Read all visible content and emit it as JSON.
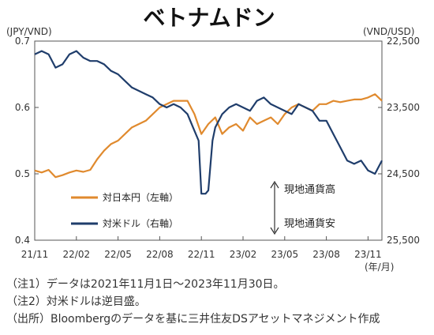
{
  "chart_data": {
    "type": "line",
    "title": "ベトナムドン",
    "left_axis_unit": "(JPY/VND)",
    "right_axis_unit": "(VND/USD)",
    "x_unit": "(年/月)",
    "x_ticks": [
      "21/11",
      "22/02",
      "22/05",
      "22/08",
      "22/11",
      "23/02",
      "23/05",
      "23/08",
      "23/11"
    ],
    "x_range": [
      0,
      25
    ],
    "y_left": {
      "ticks": [
        "0.4",
        "0.5",
        "0.6",
        "0.7"
      ],
      "range": [
        0.4,
        0.7
      ]
    },
    "y_right": {
      "ticks": [
        "22,500",
        "23,500",
        "24,500",
        "25,500"
      ],
      "range": [
        22500,
        25500
      ],
      "inverted": true
    },
    "grid": false,
    "legend_position": "lower-left",
    "series": [
      {
        "name": "対日本円（左軸）",
        "axis": "left",
        "color": "#e08a2e",
        "x": [
          0,
          0.5,
          1,
          1.5,
          2,
          2.5,
          3,
          3.5,
          4,
          4.5,
          5,
          5.5,
          6,
          6.5,
          7,
          7.5,
          8,
          8.5,
          9,
          9.5,
          10,
          10.5,
          11,
          11.5,
          12,
          12.5,
          13,
          13.5,
          14,
          14.5,
          15,
          15.5,
          16,
          16.5,
          17,
          17.5,
          18,
          18.5,
          19,
          19.5,
          20,
          20.5,
          21,
          21.5,
          22,
          22.5,
          23,
          23.5,
          24,
          24.5,
          25
        ],
        "values": [
          0.505,
          0.502,
          0.506,
          0.495,
          0.498,
          0.502,
          0.505,
          0.503,
          0.506,
          0.522,
          0.535,
          0.545,
          0.55,
          0.56,
          0.57,
          0.575,
          0.58,
          0.59,
          0.6,
          0.605,
          0.61,
          0.61,
          0.61,
          0.59,
          0.56,
          0.575,
          0.585,
          0.56,
          0.57,
          0.575,
          0.565,
          0.585,
          0.575,
          0.58,
          0.585,
          0.575,
          0.59,
          0.6,
          0.605,
          0.6,
          0.595,
          0.605,
          0.605,
          0.61,
          0.608,
          0.61,
          0.612,
          0.612,
          0.615,
          0.62,
          0.61
        ]
      },
      {
        "name": "対米ドル（右軸）",
        "axis": "right",
        "color": "#1f3d6b",
        "x": [
          0,
          0.5,
          1,
          1.5,
          2,
          2.5,
          3,
          3.5,
          4,
          4.5,
          5,
          5.5,
          6,
          6.5,
          7,
          7.5,
          8,
          8.5,
          9,
          9.5,
          10,
          10.5,
          11,
          11.4,
          11.8,
          12,
          12.3,
          12.5,
          12.8,
          13,
          13.5,
          14,
          14.5,
          15,
          15.5,
          16,
          16.5,
          17,
          17.5,
          18,
          18.5,
          19,
          19.5,
          20,
          20.5,
          21,
          21.5,
          22,
          22.5,
          23,
          23.5,
          24,
          24.5,
          25
        ],
        "values": [
          22700,
          22650,
          22700,
          22900,
          22850,
          22700,
          22650,
          22750,
          22800,
          22800,
          22850,
          22950,
          23000,
          23100,
          23200,
          23250,
          23300,
          23350,
          23450,
          23500,
          23450,
          23500,
          23600,
          23800,
          24000,
          24800,
          24800,
          24750,
          24000,
          23800,
          23600,
          23500,
          23450,
          23500,
          23550,
          23400,
          23350,
          23450,
          23500,
          23550,
          23600,
          23450,
          23500,
          23550,
          23700,
          23700,
          23900,
          24100,
          24300,
          24350,
          24300,
          24450,
          24500,
          24300
        ]
      }
    ],
    "annotations": {
      "up_label": "現地通貨高",
      "down_label": "現地通貨安"
    }
  },
  "notes": [
    "（注1）データは2021年11月1日～2023年11月30日。",
    "（注2）対米ドルは逆目盛。",
    "（出所）Bloombergのデータを基に三井住友DSアセットマネジメント作成"
  ]
}
